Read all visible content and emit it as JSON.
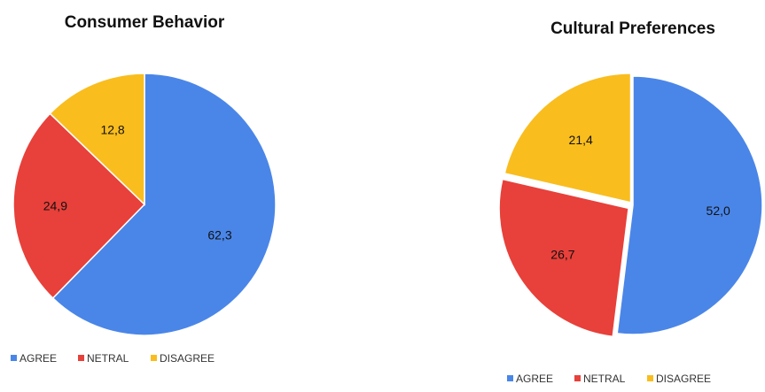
{
  "chart_data": [
    {
      "type": "pie",
      "title": "Consumer Behavior",
      "categories": [
        "AGREE",
        "NETRAL",
        "DISAGREE"
      ],
      "values": [
        62.3,
        24.9,
        12.8
      ],
      "value_labels": [
        "62,3",
        "24,9",
        "12,8"
      ],
      "colors": [
        "#4A86E8",
        "#E8403A",
        "#F9BD1E"
      ],
      "legend_position": "bottom",
      "start": "12 o'clock, clockwise"
    },
    {
      "type": "pie",
      "title": "Cultural Preferences",
      "categories": [
        "AGREE",
        "NETRAL",
        "DISAGREE"
      ],
      "values": [
        52.0,
        26.7,
        21.4
      ],
      "value_labels": [
        "52,0",
        "26,7",
        "21,4"
      ],
      "colors": [
        "#4A86E8",
        "#E8403A",
        "#F9BD1E"
      ],
      "legend_position": "bottom",
      "start": "12 o'clock, clockwise"
    }
  ]
}
